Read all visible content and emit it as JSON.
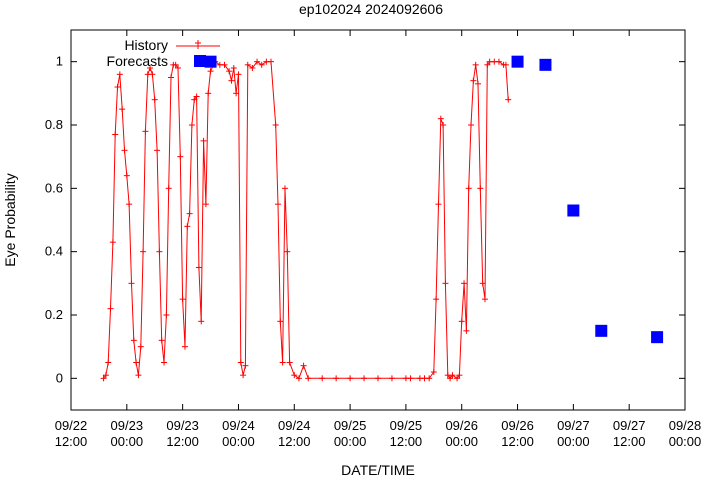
{
  "chart_data": {
    "type": "scatter",
    "title": "ep102024 2024092606",
    "xlabel": "DATE/TIME",
    "ylabel": "Eye Probability",
    "xlim": [
      "2024-09-22 12:00",
      "2024-09-28 00:00"
    ],
    "ylim": [
      -0.1,
      1.1
    ],
    "grid": false,
    "legend_position": "top-left",
    "x_ticks": [
      {
        "time": "2024-09-22 12:00",
        "line1": "09/22",
        "line2": "12:00"
      },
      {
        "time": "2024-09-23 00:00",
        "line1": "09/23",
        "line2": "00:00"
      },
      {
        "time": "2024-09-23 12:00",
        "line1": "09/23",
        "line2": "12:00"
      },
      {
        "time": "2024-09-24 00:00",
        "line1": "09/24",
        "line2": "00:00"
      },
      {
        "time": "2024-09-24 12:00",
        "line1": "09/24",
        "line2": "12:00"
      },
      {
        "time": "2024-09-25 00:00",
        "line1": "09/25",
        "line2": "00:00"
      },
      {
        "time": "2024-09-25 12:00",
        "line1": "09/25",
        "line2": "12:00"
      },
      {
        "time": "2024-09-26 00:00",
        "line1": "09/26",
        "line2": "00:00"
      },
      {
        "time": "2024-09-26 12:00",
        "line1": "09/26",
        "line2": "12:00"
      },
      {
        "time": "2024-09-27 00:00",
        "line1": "09/27",
        "line2": "00:00"
      },
      {
        "time": "2024-09-27 12:00",
        "line1": "09/27",
        "line2": "12:00"
      },
      {
        "time": "2024-09-28 00:00",
        "line1": "09/28",
        "line2": "00:00"
      }
    ],
    "y_ticks": [
      {
        "value": 0,
        "label": "0"
      },
      {
        "value": 0.2,
        "label": "0.2"
      },
      {
        "value": 0.4,
        "label": "0.4"
      },
      {
        "value": 0.6,
        "label": "0.6"
      },
      {
        "value": 0.8,
        "label": "0.8"
      },
      {
        "value": 1,
        "label": "1"
      }
    ],
    "series": [
      {
        "name": "History",
        "style": "line-with-plus-markers",
        "color": "#ff0000",
        "points": [
          [
            "2024-09-22 19:00",
            0.0
          ],
          [
            "2024-09-22 19:30",
            0.01
          ],
          [
            "2024-09-22 20:00",
            0.05
          ],
          [
            "2024-09-22 20:30",
            0.22
          ],
          [
            "2024-09-22 21:00",
            0.43
          ],
          [
            "2024-09-22 21:30",
            0.77
          ],
          [
            "2024-09-22 22:00",
            0.92
          ],
          [
            "2024-09-22 22:30",
            0.96
          ],
          [
            "2024-09-22 23:00",
            0.85
          ],
          [
            "2024-09-22 23:30",
            0.72
          ],
          [
            "2024-09-23 00:00",
            0.64
          ],
          [
            "2024-09-23 00:30",
            0.55
          ],
          [
            "2024-09-23 01:00",
            0.3
          ],
          [
            "2024-09-23 01:30",
            0.12
          ],
          [
            "2024-09-23 02:00",
            0.05
          ],
          [
            "2024-09-23 02:30",
            0.01
          ],
          [
            "2024-09-23 03:00",
            0.1
          ],
          [
            "2024-09-23 03:30",
            0.4
          ],
          [
            "2024-09-23 04:00",
            0.78
          ],
          [
            "2024-09-23 04:30",
            0.96
          ],
          [
            "2024-09-23 05:00",
            0.98
          ],
          [
            "2024-09-23 05:30",
            0.96
          ],
          [
            "2024-09-23 06:00",
            0.88
          ],
          [
            "2024-09-23 06:30",
            0.72
          ],
          [
            "2024-09-23 07:00",
            0.4
          ],
          [
            "2024-09-23 07:30",
            0.12
          ],
          [
            "2024-09-23 08:00",
            0.05
          ],
          [
            "2024-09-23 08:30",
            0.2
          ],
          [
            "2024-09-23 09:00",
            0.6
          ],
          [
            "2024-09-23 09:30",
            0.95
          ],
          [
            "2024-09-23 10:00",
            0.99
          ],
          [
            "2024-09-23 10:30",
            0.99
          ],
          [
            "2024-09-23 11:00",
            0.98
          ],
          [
            "2024-09-23 11:30",
            0.7
          ],
          [
            "2024-09-23 12:00",
            0.25
          ],
          [
            "2024-09-23 12:30",
            0.1
          ],
          [
            "2024-09-23 13:00",
            0.48
          ],
          [
            "2024-09-23 13:30",
            0.52
          ],
          [
            "2024-09-23 14:00",
            0.8
          ],
          [
            "2024-09-23 14:30",
            0.88
          ],
          [
            "2024-09-23 15:00",
            0.89
          ],
          [
            "2024-09-23 15:30",
            0.35
          ],
          [
            "2024-09-23 16:00",
            0.18
          ],
          [
            "2024-09-23 16:30",
            0.75
          ],
          [
            "2024-09-23 17:00",
            0.55
          ],
          [
            "2024-09-23 17:30",
            0.9
          ],
          [
            "2024-09-23 18:00",
            0.97
          ],
          [
            "2024-09-23 19:00",
            1.0
          ],
          [
            "2024-09-23 20:00",
            0.99
          ],
          [
            "2024-09-23 21:00",
            0.99
          ],
          [
            "2024-09-23 22:00",
            0.97
          ],
          [
            "2024-09-23 22:30",
            0.94
          ],
          [
            "2024-09-23 23:00",
            0.98
          ],
          [
            "2024-09-23 23:30",
            0.9
          ],
          [
            "2024-09-24 00:00",
            0.96
          ],
          [
            "2024-09-24 00:30",
            0.05
          ],
          [
            "2024-09-24 01:00",
            0.01
          ],
          [
            "2024-09-24 01:30",
            0.04
          ],
          [
            "2024-09-24 02:00",
            0.99
          ],
          [
            "2024-09-24 03:00",
            0.98
          ],
          [
            "2024-09-24 04:00",
            1.0
          ],
          [
            "2024-09-24 05:00",
            0.99
          ],
          [
            "2024-09-24 06:00",
            1.0
          ],
          [
            "2024-09-24 07:00",
            1.0
          ],
          [
            "2024-09-24 08:00",
            0.8
          ],
          [
            "2024-09-24 08:30",
            0.55
          ],
          [
            "2024-09-24 09:00",
            0.18
          ],
          [
            "2024-09-24 09:30",
            0.05
          ],
          [
            "2024-09-24 10:00",
            0.6
          ],
          [
            "2024-09-24 10:30",
            0.4
          ],
          [
            "2024-09-24 11:00",
            0.05
          ],
          [
            "2024-09-24 12:00",
            0.01
          ],
          [
            "2024-09-24 13:00",
            0.0
          ],
          [
            "2024-09-24 14:00",
            0.04
          ],
          [
            "2024-09-24 15:00",
            0.0
          ],
          [
            "2024-09-24 18:00",
            0.0
          ],
          [
            "2024-09-24 21:00",
            0.0
          ],
          [
            "2024-09-25 00:00",
            0.0
          ],
          [
            "2024-09-25 03:00",
            0.0
          ],
          [
            "2024-09-25 06:00",
            0.0
          ],
          [
            "2024-09-25 09:00",
            0.0
          ],
          [
            "2024-09-25 12:00",
            0.0
          ],
          [
            "2024-09-25 13:00",
            0.0
          ],
          [
            "2024-09-25 15:00",
            0.0
          ],
          [
            "2024-09-25 16:00",
            0.0
          ],
          [
            "2024-09-25 17:00",
            0.0
          ],
          [
            "2024-09-25 18:00",
            0.02
          ],
          [
            "2024-09-25 18:30",
            0.25
          ],
          [
            "2024-09-25 19:00",
            0.55
          ],
          [
            "2024-09-25 19:30",
            0.82
          ],
          [
            "2024-09-25 20:00",
            0.8
          ],
          [
            "2024-09-25 20:30",
            0.3
          ],
          [
            "2024-09-25 21:00",
            0.01
          ],
          [
            "2024-09-25 21:30",
            0.0
          ],
          [
            "2024-09-25 22:00",
            0.01
          ],
          [
            "2024-09-25 23:00",
            0.0
          ],
          [
            "2024-09-25 23:30",
            0.01
          ],
          [
            "2024-09-26 00:00",
            0.18
          ],
          [
            "2024-09-26 00:30",
            0.3
          ],
          [
            "2024-09-26 01:00",
            0.15
          ],
          [
            "2024-09-26 01:30",
            0.6
          ],
          [
            "2024-09-26 02:00",
            0.8
          ],
          [
            "2024-09-26 02:30",
            0.94
          ],
          [
            "2024-09-26 03:00",
            0.99
          ],
          [
            "2024-09-26 03:30",
            0.93
          ],
          [
            "2024-09-26 04:00",
            0.6
          ],
          [
            "2024-09-26 04:30",
            0.3
          ],
          [
            "2024-09-26 05:00",
            0.25
          ],
          [
            "2024-09-26 05:30",
            0.99
          ],
          [
            "2024-09-26 06:00",
            1.0
          ],
          [
            "2024-09-26 07:00",
            1.0
          ],
          [
            "2024-09-26 08:00",
            1.0
          ],
          [
            "2024-09-26 09:00",
            0.99
          ],
          [
            "2024-09-26 09:30",
            0.99
          ],
          [
            "2024-09-26 10:00",
            0.88
          ]
        ]
      },
      {
        "name": "Forecasts",
        "style": "filled-squares",
        "color": "#0000ff",
        "points": [
          [
            "2024-09-23 18:00",
            1.0
          ],
          [
            "2024-09-26 12:00",
            1.0
          ],
          [
            "2024-09-26 18:00",
            0.99
          ],
          [
            "2024-09-27 00:00",
            0.53
          ],
          [
            "2024-09-27 06:00",
            0.15
          ],
          [
            "2024-09-27 18:00",
            0.13
          ]
        ]
      }
    ]
  }
}
